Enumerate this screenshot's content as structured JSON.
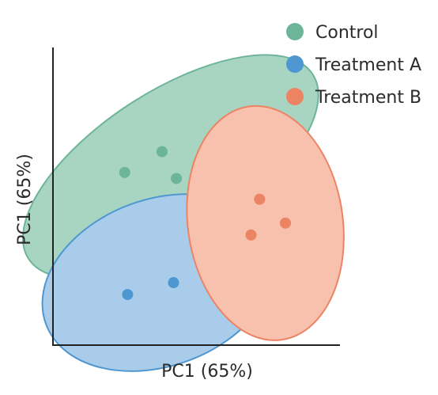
{
  "chart_data": {
    "type": "scatter",
    "xlabel": "PC1 (65%)",
    "ylabel": "PC1 (65%)",
    "xlim": [
      0,
      10
    ],
    "ylim": [
      0,
      10
    ],
    "grid": false,
    "ticks_shown": false,
    "legend_position": "top-right",
    "series": [
      {
        "name": "Control",
        "color": "#6cb49a",
        "fill": "#a8d5c2",
        "points": [
          [
            2.5,
            5.8
          ],
          [
            3.8,
            6.5
          ],
          [
            4.3,
            5.6
          ]
        ],
        "ellipse": {
          "cx": 4.1,
          "cy": 6.0,
          "rx": 5.9,
          "ry": 2.6,
          "angle_deg": 33
        }
      },
      {
        "name": "Treatment A",
        "color": "#4f97d1",
        "fill": "#a9cceb",
        "points": [
          [
            2.6,
            1.7
          ],
          [
            4.2,
            2.1
          ]
        ],
        "ellipse": {
          "cx": 3.7,
          "cy": 2.1,
          "rx": 4.2,
          "ry": 2.9,
          "angle_deg": 20
        }
      },
      {
        "name": "Treatment B",
        "color": "#ec8464",
        "fill": "#f7c1ad",
        "points": [
          [
            7.2,
            4.9
          ],
          [
            8.1,
            4.1
          ],
          [
            6.9,
            3.7
          ]
        ],
        "ellipse": {
          "cx": 7.4,
          "cy": 4.1,
          "rx": 2.7,
          "ry": 4.1,
          "angle_deg": 8
        }
      }
    ]
  }
}
